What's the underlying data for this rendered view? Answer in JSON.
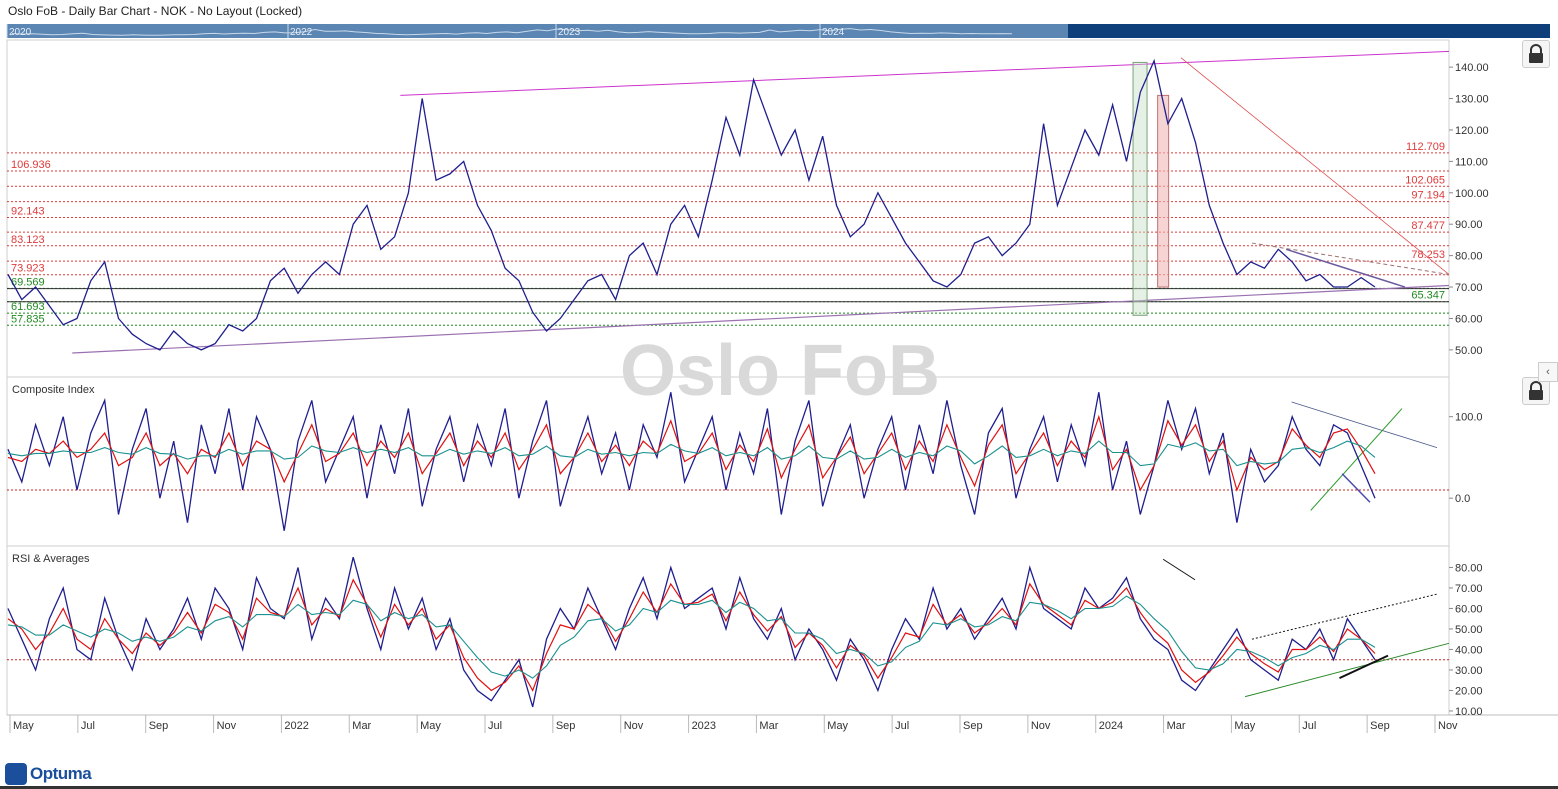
{
  "window": {
    "title": "Oslo FoB - Daily Bar Chart - NOK - No Layout (Locked)"
  },
  "watermark": "Oslo FoB",
  "logo": "Optuma",
  "navigator": {
    "years": [
      "2020",
      "2022",
      "2023",
      "2024"
    ]
  },
  "colors": {
    "price": "#1f1f8f",
    "fast": "#e01010",
    "slow": "#1a9090",
    "fib": "#e03a3a",
    "green_level": "#1f8a1f",
    "trend": "#cc33cc",
    "navigator": "#5b86b3"
  },
  "chart_data": [
    {
      "type": "line",
      "title": "",
      "x_ticks": [
        "May",
        "Jul",
        "Sep",
        "Nov",
        "2022",
        "Mar",
        "May",
        "Jul",
        "Sep",
        "Nov",
        "2023",
        "Mar",
        "May",
        "Jul",
        "Sep",
        "Nov",
        "2024",
        "Mar",
        "May",
        "Jul",
        "Sep",
        "Nov"
      ],
      "y_ticks": [
        50,
        60,
        70,
        80,
        90,
        100,
        110,
        120,
        130,
        140
      ],
      "y_tick_labels": [
        "50.00",
        "60.00",
        "70.00",
        "80.00",
        "90.00",
        "100.00",
        "110.00",
        "120.00",
        "130.00",
        "140.00"
      ],
      "ylim": [
        42,
        148
      ],
      "grid": false,
      "series": [
        {
          "values": [
            74,
            66,
            70,
            64,
            58,
            60,
            72,
            78,
            60,
            55,
            52,
            50,
            56,
            52,
            50,
            52,
            58,
            56,
            60,
            72,
            76,
            68,
            74,
            78,
            74,
            90,
            96,
            82,
            86,
            100,
            130,
            104,
            106,
            110,
            96,
            88,
            76,
            72,
            62,
            56,
            60,
            66,
            72,
            74,
            66,
            80,
            84,
            74,
            90,
            96,
            86,
            104,
            124,
            112,
            136,
            124,
            112,
            120,
            104,
            118,
            96,
            86,
            90,
            100,
            92,
            84,
            78,
            72,
            70,
            74,
            84,
            86,
            80,
            84,
            90,
            122,
            96,
            108,
            120,
            112,
            128,
            110,
            132,
            142,
            122,
            130,
            116,
            96,
            84,
            74,
            78,
            76,
            82,
            78,
            72,
            74,
            70,
            70,
            73,
            70
          ]
        }
      ],
      "fib_levels_left": [
        "106.936",
        "92.143",
        "83.123",
        "73.923"
      ],
      "fib_levels_right": [
        "112.709",
        "102.065",
        "97.194",
        "87.477",
        "78.253"
      ],
      "green_levels_left": [
        "69.569",
        "61.693",
        "57.835"
      ],
      "green_levels_right": [
        "65.347"
      ]
    },
    {
      "type": "line",
      "title": "Composite Index",
      "y_ticks": [
        0,
        100
      ],
      "y_tick_labels": [
        "0.0",
        "100.0"
      ],
      "ylim": [
        -55,
        145
      ],
      "reference": 10,
      "series": [
        {
          "values": [
            60,
            20,
            90,
            40,
            100,
            10,
            80,
            120,
            -20,
            60,
            110,
            0,
            70,
            -30,
            90,
            30,
            110,
            10,
            100,
            60,
            -40,
            70,
            120,
            20,
            60,
            100,
            0,
            90,
            30,
            110,
            -10,
            60,
            100,
            20,
            90,
            40,
            110,
            0,
            70,
            120,
            -10,
            50,
            100,
            30,
            80,
            10,
            90,
            50,
            130,
            20,
            60,
            100,
            10,
            80,
            30,
            110,
            -20,
            70,
            120,
            -10,
            50,
            90,
            0,
            60,
            100,
            10,
            90,
            30,
            120,
            40,
            -20,
            80,
            110,
            0,
            60,
            100,
            20,
            90,
            40,
            130,
            10,
            70,
            -20,
            40,
            120,
            60,
            110,
            30,
            80,
            -30,
            60,
            20,
            40,
            100,
            60,
            40,
            90,
            80,
            40,
            0
          ]
        },
        {
          "values": [
            50,
            45,
            60,
            55,
            70,
            50,
            60,
            80,
            40,
            50,
            80,
            40,
            55,
            30,
            60,
            50,
            80,
            40,
            70,
            60,
            20,
            55,
            90,
            45,
            55,
            80,
            40,
            70,
            50,
            80,
            30,
            55,
            80,
            40,
            70,
            50,
            80,
            35,
            60,
            90,
            30,
            50,
            80,
            45,
            65,
            40,
            70,
            55,
            95,
            45,
            55,
            80,
            35,
            65,
            45,
            85,
            25,
            60,
            90,
            25,
            50,
            75,
            30,
            55,
            80,
            35,
            70,
            45,
            90,
            50,
            15,
            65,
            90,
            30,
            55,
            80,
            40,
            70,
            50,
            100,
            35,
            60,
            10,
            40,
            95,
            65,
            90,
            45,
            70,
            10,
            50,
            35,
            45,
            85,
            65,
            50,
            80,
            85,
            60,
            30
          ]
        },
        {
          "values": [
            55,
            52,
            55,
            55,
            58,
            56,
            56,
            62,
            56,
            54,
            62,
            55,
            54,
            48,
            52,
            52,
            60,
            54,
            58,
            58,
            48,
            50,
            64,
            58,
            56,
            62,
            56,
            60,
            56,
            62,
            52,
            52,
            60,
            54,
            58,
            55,
            62,
            52,
            54,
            64,
            52,
            50,
            60,
            54,
            56,
            52,
            56,
            55,
            66,
            58,
            55,
            62,
            52,
            56,
            52,
            62,
            48,
            52,
            64,
            50,
            48,
            58,
            48,
            50,
            60,
            50,
            56,
            52,
            64,
            58,
            42,
            52,
            64,
            50,
            52,
            60,
            52,
            58,
            55,
            70,
            56,
            56,
            40,
            42,
            66,
            62,
            68,
            58,
            60,
            40,
            45,
            42,
            44,
            60,
            62,
            56,
            62,
            70,
            64,
            50
          ]
        }
      ]
    },
    {
      "type": "line",
      "title": "RSI & Averages",
      "y_ticks": [
        10,
        20,
        30,
        40,
        50,
        60,
        70,
        80
      ],
      "y_tick_labels": [
        "10.00",
        "20.00",
        "30.00",
        "40.00",
        "50.00",
        "60.00",
        "70.00",
        "80.00"
      ],
      "ylim": [
        9,
        89
      ],
      "reference": 35,
      "series": [
        {
          "values": [
            60,
            45,
            30,
            55,
            70,
            40,
            35,
            65,
            45,
            30,
            55,
            40,
            50,
            65,
            45,
            70,
            60,
            40,
            75,
            60,
            55,
            80,
            45,
            65,
            55,
            85,
            60,
            40,
            70,
            50,
            65,
            40,
            55,
            30,
            20,
            15,
            25,
            35,
            12,
            45,
            60,
            50,
            70,
            55,
            40,
            60,
            75,
            55,
            80,
            60,
            65,
            70,
            50,
            75,
            55,
            45,
            60,
            35,
            50,
            40,
            25,
            45,
            35,
            20,
            40,
            55,
            45,
            70,
            50,
            60,
            45,
            55,
            65,
            50,
            80,
            60,
            55,
            50,
            70,
            60,
            65,
            75,
            55,
            45,
            40,
            25,
            20,
            30,
            40,
            50,
            35,
            30,
            25,
            45,
            40,
            50,
            35,
            55,
            45,
            35
          ]
        },
        {
          "values": [
            55,
            50,
            40,
            48,
            60,
            45,
            40,
            55,
            45,
            38,
            48,
            42,
            48,
            58,
            48,
            62,
            58,
            45,
            65,
            58,
            56,
            70,
            52,
            60,
            56,
            74,
            62,
            46,
            62,
            52,
            60,
            45,
            52,
            36,
            26,
            20,
            24,
            32,
            20,
            38,
            52,
            50,
            62,
            56,
            44,
            55,
            68,
            58,
            72,
            62,
            63,
            67,
            54,
            68,
            57,
            49,
            56,
            41,
            48,
            42,
            31,
            42,
            37,
            26,
            36,
            48,
            46,
            62,
            52,
            57,
            48,
            53,
            60,
            52,
            72,
            62,
            57,
            52,
            64,
            60,
            63,
            70,
            58,
            49,
            43,
            30,
            24,
            29,
            37,
            46,
            38,
            33,
            29,
            40,
            40,
            46,
            39,
            50,
            45,
            38
          ]
        },
        {
          "values": [
            52,
            51,
            47,
            47,
            52,
            49,
            46,
            50,
            48,
            44,
            46,
            44,
            46,
            51,
            49,
            54,
            56,
            51,
            57,
            57,
            56,
            62,
            57,
            58,
            57,
            64,
            62,
            54,
            58,
            55,
            57,
            51,
            52,
            44,
            36,
            29,
            27,
            30,
            26,
            32,
            42,
            46,
            54,
            55,
            49,
            52,
            60,
            58,
            64,
            62,
            62,
            64,
            58,
            63,
            60,
            54,
            55,
            48,
            48,
            45,
            38,
            40,
            38,
            32,
            34,
            41,
            44,
            53,
            52,
            55,
            51,
            52,
            56,
            54,
            63,
            62,
            59,
            55,
            60,
            60,
            61,
            66,
            62,
            55,
            49,
            39,
            31,
            30,
            33,
            40,
            39,
            36,
            32,
            36,
            38,
            42,
            40,
            45,
            45,
            41
          ]
        }
      ]
    }
  ]
}
